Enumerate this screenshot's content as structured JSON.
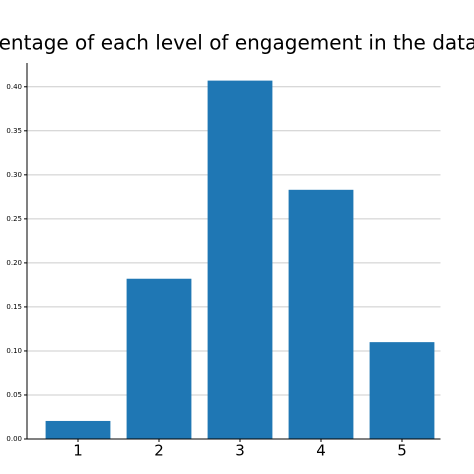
{
  "chart_data": {
    "type": "bar",
    "title": "Percentage of each level of engagement in the dataset",
    "categories": [
      "1",
      "2",
      "3",
      "4",
      "5"
    ],
    "values": [
      0.0205,
      0.182,
      0.407,
      0.283,
      0.11
    ],
    "color": "#1f77b4",
    "ylim": [
      0,
      0.427
    ],
    "yticks": [
      {
        "value": 0,
        "label": "0.00"
      },
      {
        "value": 0.05,
        "label": "0.05"
      },
      {
        "value": 0.1,
        "label": "0.10"
      },
      {
        "value": 0.15,
        "label": "0.15"
      },
      {
        "value": 0.2,
        "label": "0.20"
      },
      {
        "value": 0.25,
        "label": "0.25"
      },
      {
        "value": 0.3,
        "label": "0.30"
      },
      {
        "value": 0.35,
        "label": "0.35"
      },
      {
        "value": 0.4,
        "label": "0.40"
      }
    ],
    "grid": true
  }
}
